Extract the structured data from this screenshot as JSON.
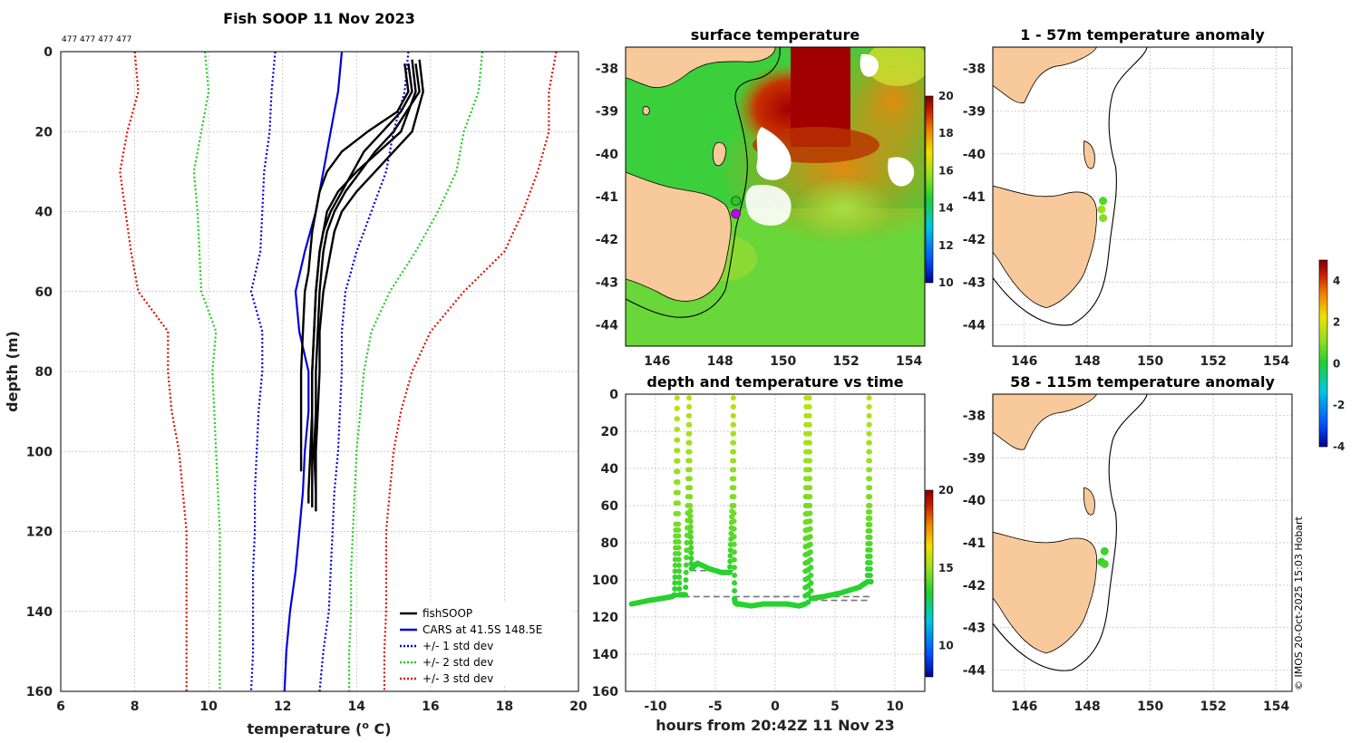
{
  "figure_title": "Fish SOOP 11 Nov 2023",
  "credit": "© IMOS 20-Oct-2025 15:03 Hobart",
  "colors": {
    "land": "#f8c99a",
    "fishsoop": "#000000",
    "cars": "#0000dd",
    "sd1": "#0000dd",
    "sd2": "#22cc22",
    "sd3": "#dd1100",
    "colormap": [
      "#00008f",
      "#0050ff",
      "#00c8e0",
      "#20d030",
      "#9be020",
      "#f2e000",
      "#f08000",
      "#c81e00",
      "#800000"
    ]
  },
  "chart_data": [
    {
      "id": "profile",
      "type": "line",
      "title": "Fish SOOP 11 Nov 2023",
      "annotation": "477 477 477 477",
      "xlabel": "temperature (",
      "xlabel_sup": "o",
      "xlabel_end": " C)",
      "ylabel": "depth (m)",
      "xlim": [
        6,
        20
      ],
      "ylim": [
        0,
        160
      ],
      "y_reversed": true,
      "xticks": [
        6,
        8,
        10,
        12,
        14,
        16,
        18,
        20
      ],
      "yticks": [
        0,
        20,
        40,
        60,
        80,
        100,
        120,
        140,
        160
      ],
      "grid": true,
      "legend_position": "bottom-right",
      "series": [
        {
          "name": "fishSOOP",
          "style": "solid",
          "color": "#000000",
          "profiles": [
            {
              "depth": [
                3,
                10,
                15,
                20,
                25,
                30,
                35,
                40,
                45,
                50,
                55,
                60,
                70,
                80,
                90,
                100,
                105
              ],
              "temp": [
                15.3,
                15.4,
                15.1,
                14.3,
                13.6,
                13.2,
                13.0,
                12.9,
                12.8,
                12.75,
                12.7,
                12.6,
                12.55,
                12.5,
                12.5,
                12.5,
                12.5
              ]
            },
            {
              "depth": [
                2,
                10,
                20,
                25,
                30,
                35,
                40,
                45,
                50,
                55,
                60,
                70,
                80,
                90,
                100,
                110,
                114
              ],
              "temp": [
                15.5,
                15.6,
                15.2,
                14.6,
                14.0,
                13.5,
                13.2,
                13.1,
                13.0,
                12.95,
                12.9,
                12.85,
                12.8,
                12.8,
                12.8,
                12.8,
                12.8
              ]
            },
            {
              "depth": [
                2,
                10,
                20,
                25,
                30,
                35,
                40,
                45,
                50,
                55,
                60,
                70,
                80,
                90,
                100,
                110,
                115
              ],
              "temp": [
                15.7,
                15.8,
                15.5,
                15.0,
                14.5,
                14.0,
                13.6,
                13.4,
                13.3,
                13.2,
                13.1,
                13.0,
                13.0,
                12.95,
                12.9,
                12.9,
                12.9
              ]
            },
            {
              "depth": [
                3,
                10,
                15,
                20,
                25,
                30,
                35,
                40,
                45,
                50,
                55,
                60,
                70,
                80,
                90,
                100,
                110,
                113
              ],
              "temp": [
                15.4,
                15.5,
                15.2,
                14.7,
                14.2,
                13.9,
                13.6,
                13.3,
                13.1,
                13.0,
                12.95,
                12.9,
                12.85,
                12.8,
                12.8,
                12.75,
                12.7,
                12.7
              ]
            },
            {
              "depth": [
                3,
                10,
                20,
                25,
                30,
                35,
                40,
                45,
                50,
                55,
                60,
                70,
                80,
                90,
                100,
                110
              ],
              "temp": [
                15.6,
                15.7,
                15.0,
                14.5,
                14.1,
                13.7,
                13.4,
                13.2,
                13.1,
                13.05,
                13.0,
                12.95,
                12.9,
                12.9,
                12.85,
                12.9
              ]
            }
          ]
        },
        {
          "name": "CARS at 41.5S 148.5E",
          "style": "solid",
          "color": "#0000dd",
          "depth": [
            0,
            10,
            20,
            30,
            40,
            50,
            60,
            70,
            80,
            90,
            100,
            110,
            120,
            130,
            140,
            150,
            160
          ],
          "temp": [
            13.6,
            13.5,
            13.3,
            13.1,
            12.9,
            12.6,
            12.35,
            12.45,
            12.7,
            12.7,
            12.6,
            12.55,
            12.45,
            12.35,
            12.2,
            12.1,
            12.05
          ]
        },
        {
          "name": "+/- 1 std dev",
          "style": "dotted",
          "color": "#0000dd",
          "depth": [
            0,
            10,
            20,
            30,
            40,
            50,
            60,
            70,
            80,
            90,
            100,
            110,
            120,
            130,
            140,
            150,
            160
          ],
          "temp_low": [
            11.8,
            11.7,
            11.65,
            11.5,
            11.45,
            11.4,
            11.15,
            11.45,
            11.45,
            11.35,
            11.3,
            11.25,
            11.25,
            11.2,
            11.2,
            11.2,
            11.15
          ],
          "temp_high": [
            15.4,
            15.3,
            15.0,
            14.8,
            14.4,
            14.0,
            13.7,
            13.6,
            13.6,
            13.55,
            13.5,
            13.4,
            13.35,
            13.3,
            13.25,
            13.1,
            13.0
          ]
        },
        {
          "name": "+/- 2 std dev",
          "style": "dotted",
          "color": "#22cc22",
          "depth": [
            0,
            10,
            20,
            30,
            40,
            50,
            60,
            70,
            80,
            90,
            100,
            110,
            120,
            130,
            140,
            150,
            160
          ],
          "temp_low": [
            9.9,
            10.0,
            9.8,
            9.6,
            9.7,
            9.75,
            9.8,
            10.2,
            10.1,
            10.15,
            10.2,
            10.25,
            10.3,
            10.3,
            10.3,
            10.3,
            10.3
          ],
          "temp_high": [
            17.4,
            17.3,
            16.9,
            16.7,
            16.2,
            15.6,
            14.9,
            14.4,
            14.2,
            14.1,
            14.0,
            13.95,
            13.9,
            13.85,
            13.85,
            13.8,
            13.8
          ]
        },
        {
          "name": "+/- 3 std dev",
          "style": "dotted",
          "color": "#dd1100",
          "depth": [
            0,
            10,
            20,
            30,
            40,
            50,
            60,
            70,
            80,
            90,
            100,
            110,
            120,
            130,
            140,
            150,
            160
          ],
          "temp_low": [
            8.0,
            8.1,
            7.8,
            7.6,
            7.75,
            7.9,
            8.1,
            8.9,
            8.9,
            9.0,
            9.2,
            9.3,
            9.4,
            9.4,
            9.4,
            9.4,
            9.4
          ],
          "temp_high": [
            19.4,
            19.2,
            19.2,
            18.9,
            18.5,
            18.0,
            16.9,
            16.0,
            15.5,
            15.2,
            15.0,
            14.9,
            14.8,
            14.8,
            14.8,
            14.75,
            14.75
          ]
        }
      ]
    },
    {
      "id": "sst",
      "type": "heatmap",
      "title": "surface temperature",
      "xlim": [
        145,
        154.5
      ],
      "ylim": [
        -44.5,
        -37.5
      ],
      "xticks": [
        "146",
        "148",
        "150",
        "152",
        "154"
      ],
      "yticks": [
        "-38",
        "-39",
        "-40",
        "-41",
        "-42",
        "-43",
        "-44"
      ],
      "colorbar": {
        "min": 10,
        "max": 20,
        "ticks": [
          "20",
          "18",
          "16",
          "14",
          "12",
          "10"
        ]
      },
      "markers": [
        {
          "lon": 148.5,
          "lat": -41.1,
          "color": "#22cc22"
        },
        {
          "lon": 148.5,
          "lat": -41.4,
          "color": "#c000ff"
        }
      ]
    },
    {
      "id": "timeseries",
      "type": "scatter",
      "title": "depth and temperature vs time",
      "xlabel": "hours from 20:42Z 11 Nov 23",
      "xlim": [
        -12.5,
        12.5
      ],
      "ylim": [
        0,
        160
      ],
      "y_reversed": true,
      "xticks": [
        "-10",
        "-5",
        "0",
        "5",
        "10"
      ],
      "yticks": [
        "0",
        "20",
        "40",
        "60",
        "80",
        "100",
        "120",
        "140",
        "160"
      ],
      "colorbar": {
        "min": 8,
        "max": 20,
        "ticks": [
          "20",
          "15",
          "10"
        ]
      },
      "track": {
        "hours": [
          -12,
          -10.5,
          -9.5,
          -8.6,
          -8.4,
          -8.3,
          -8.2,
          -8.1,
          -8.0,
          -7.8,
          -7.5,
          -7.3,
          -7.2,
          -7.1,
          -7.0,
          -6.5,
          -5.5,
          -4.5,
          -3.8,
          -3.6,
          -3.5,
          -3.45,
          -3.4,
          -3.35,
          -3.2,
          -3.0,
          -2.0,
          -1.0,
          0.0,
          1.0,
          2.0,
          2.5,
          2.55,
          2.6,
          2.65,
          2.75,
          2.8,
          2.85,
          2.9,
          3.0,
          4.0,
          5.5,
          7.0,
          7.7,
          7.8,
          7.85,
          7.9,
          7.95,
          8.0
        ],
        "depth": [
          113,
          111,
          110,
          109,
          108,
          70,
          2,
          70,
          108,
          108,
          108,
          60,
          2,
          60,
          94,
          91,
          94,
          96,
          96,
          60,
          2,
          60,
          110,
          112,
          113,
          113,
          114,
          113,
          113,
          113,
          114,
          113,
          60,
          2,
          60,
          112,
          60,
          2,
          60,
          110,
          109,
          107,
          104,
          101,
          60,
          2,
          60,
          101,
          101
        ],
        "temp": [
          13.5,
          13.5,
          13.5,
          13.5,
          13.5,
          14.5,
          15.5,
          14.5,
          13.5,
          13.5,
          13.5,
          14.5,
          15.5,
          14.5,
          13.5,
          13.5,
          13.5,
          13.5,
          13.5,
          14.5,
          15.5,
          14.5,
          13.5,
          13.5,
          13.5,
          13.5,
          13.5,
          13.5,
          13.5,
          13.5,
          13.5,
          13.5,
          14.5,
          15.5,
          14.5,
          13.5,
          14.5,
          15.5,
          14.5,
          13.5,
          13.5,
          13.5,
          13.5,
          13.5,
          14.5,
          15.5,
          14.5,
          13.5,
          13.5
        ]
      },
      "bottom_depth_segments": [
        [
          -8.5,
          109,
          7.9,
          109
        ],
        [
          -7.1,
          95,
          -3.5,
          95
        ],
        [
          3.0,
          111,
          8.0,
          111
        ]
      ]
    },
    {
      "id": "anom_upper",
      "type": "scatter",
      "title": "1 - 57m temperature anomaly",
      "xlim": [
        145,
        154.5
      ],
      "ylim": [
        -44.5,
        -37.5
      ],
      "xticks": [
        "146",
        "148",
        "150",
        "152",
        "154"
      ],
      "yticks": [
        "-38",
        "-39",
        "-40",
        "-41",
        "-42",
        "-43",
        "-44"
      ],
      "points": [
        {
          "lon": 148.5,
          "lat": -41.1,
          "anom": 0.5
        },
        {
          "lon": 148.45,
          "lat": -41.3,
          "anom": 1.2
        },
        {
          "lon": 148.5,
          "lat": -41.5,
          "anom": 1.0
        }
      ]
    },
    {
      "id": "anom_lower",
      "type": "scatter",
      "title": "58 - 115m temperature anomaly",
      "xlim": [
        145,
        154.5
      ],
      "ylim": [
        -44.5,
        -37.5
      ],
      "xticks": [
        "146",
        "148",
        "150",
        "152",
        "154"
      ],
      "yticks": [
        "-38",
        "-39",
        "-40",
        "-41",
        "-42",
        "-43",
        "-44"
      ],
      "points": [
        {
          "lon": 148.55,
          "lat": -41.2,
          "anom": 0.3
        },
        {
          "lon": 148.45,
          "lat": -41.45,
          "anom": 0.2
        },
        {
          "lon": 148.55,
          "lat": -41.5,
          "anom": 0.4
        }
      ]
    }
  ],
  "anomaly_colorbar": {
    "min": -4,
    "max": 5,
    "ticks": [
      "4",
      "2",
      "0",
      "-2",
      "-4"
    ]
  }
}
